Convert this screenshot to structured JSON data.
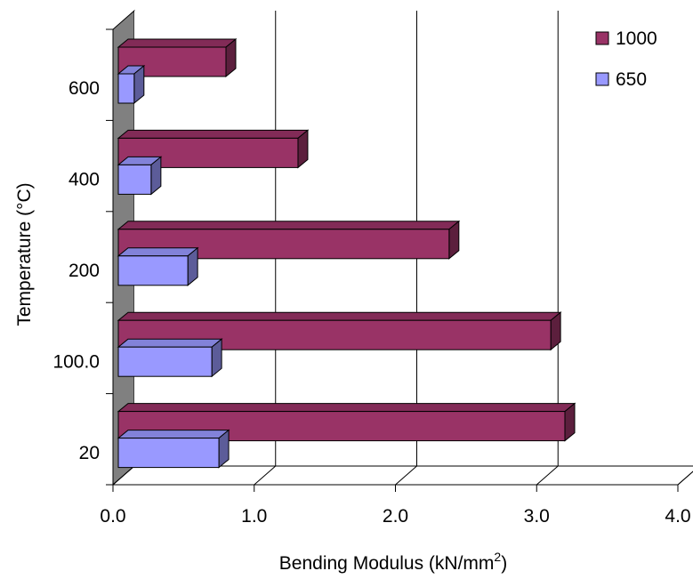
{
  "chart_data": {
    "type": "bar",
    "orientation": "horizontal",
    "three_d": true,
    "categories": [
      "20",
      "100.0",
      "200",
      "400",
      "600"
    ],
    "series": [
      {
        "name": "650",
        "color": "#9999ff",
        "values": [
          0.75,
          0.7,
          0.53,
          0.27,
          0.15
        ]
      },
      {
        "name": "1000",
        "color": "#993366",
        "values": [
          3.2,
          3.1,
          2.38,
          1.31,
          0.8
        ]
      }
    ],
    "legend_order": [
      "1000",
      "650"
    ],
    "legend_position": "top-right",
    "x_ticks": [
      "0.0",
      "1.0",
      "2.0",
      "3.0",
      "4.0"
    ],
    "xlim": [
      0,
      4
    ],
    "xlabel": "Bending Modulus (kN/mm",
    "xlabel_sup": "2",
    "xlabel_suffix": ")",
    "ylabel": "Temperature (°C)",
    "grid": true
  }
}
